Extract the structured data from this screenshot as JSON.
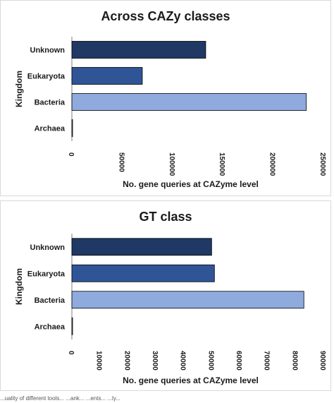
{
  "chart_data": [
    {
      "type": "bar",
      "orientation": "horizontal",
      "title": "Across CAZy classes",
      "xlabel": "No. gene queries at CAZyme level",
      "ylabel": "Kingdom",
      "categories": [
        "Unknown",
        "Eukaryota",
        "Bacteria",
        "Archaea"
      ],
      "values": [
        133000,
        70000,
        233000,
        500
      ],
      "xlim": [
        0,
        250000
      ],
      "xticks": [
        "0",
        "50000",
        "100000",
        "150000",
        "200000",
        "250000"
      ],
      "tick_values": [
        0,
        50000,
        100000,
        150000,
        200000,
        250000
      ],
      "colors": [
        "#1f3864",
        "#2f5597",
        "#8faadc",
        "#8faadc"
      ],
      "grid": false,
      "legend": "none"
    },
    {
      "type": "bar",
      "orientation": "horizontal",
      "title": "GT class",
      "xlabel": "No. gene queries at CAZyme level",
      "ylabel": "Kingdom",
      "categories": [
        "Unknown",
        "Eukaryota",
        "Bacteria",
        "Archaea"
      ],
      "values": [
        50000,
        51000,
        83000,
        200
      ],
      "xlim": [
        0,
        90000
      ],
      "xticks": [
        "0",
        "10000",
        "20000",
        "30000",
        "40000",
        "50000",
        "60000",
        "70000",
        "80000",
        "90000"
      ],
      "tick_values": [
        0,
        10000,
        20000,
        30000,
        40000,
        50000,
        60000,
        70000,
        80000,
        90000
      ],
      "colors": [
        "#1f3864",
        "#2f5597",
        "#8faadc",
        "#8faadc"
      ],
      "grid": false,
      "legend": "none"
    }
  ],
  "caption": "...uality of different tools... ...ank... ...ents... ...ly..."
}
